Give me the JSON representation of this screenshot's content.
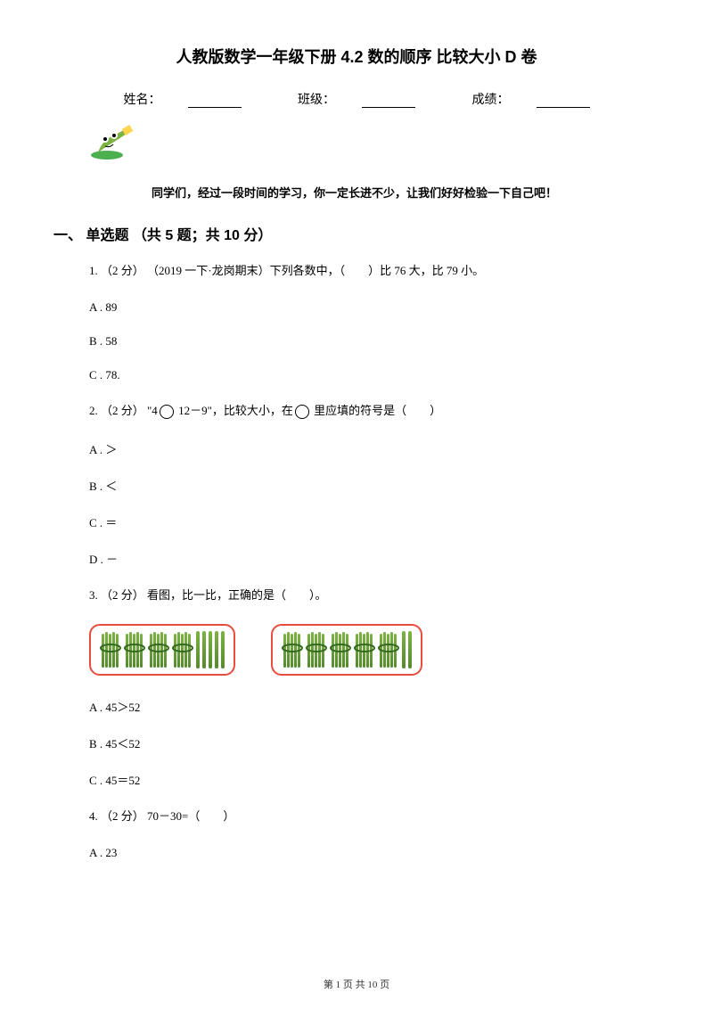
{
  "title": "人教版数学一年级下册 4.2 数的顺序 比较大小 D 卷",
  "info": {
    "name_label": "姓名：",
    "class_label": "班级：",
    "score_label": "成绩："
  },
  "encouragement": "同学们，经过一段时间的学习，你一定长进不少，让我们好好检验一下自己吧！",
  "section": "一、 单选题 （共 5 题；共 10 分）",
  "q1": {
    "text": "1.  （2 分） （2019 一下·龙岗期末）下列各数中，（　　）比 76 大，比 79 小。",
    "a": "A . 89",
    "b": "B . 58",
    "c": "C . 78."
  },
  "q2": {
    "prefix": "2.  （2 分）  \"4",
    "mid": " 12－9\"，比较大小，在",
    "suffix": " 里应填的符号是（　　）",
    "a": "A . ＞",
    "b": "B . ＜",
    "c": "C . ＝",
    "d": "D . －"
  },
  "q3": {
    "text": "3.  （2 分）  看图，比一比，正确的是（　　）。",
    "a": "A . 45＞52",
    "b": "B . 45＜52",
    "c": "C . 45＝52"
  },
  "q4": {
    "text": "4.  （2 分）  70－30=（　　）",
    "a": "A . 23"
  },
  "footer": "第 1 页 共 10 页",
  "sticks": {
    "border_color": "#e74c3c",
    "stick_color_top": "#7cb342",
    "stick_color_bottom": "#558b2f",
    "left_bundles": 4,
    "left_singles": 5,
    "right_bundles": 5,
    "right_singles": 2
  }
}
